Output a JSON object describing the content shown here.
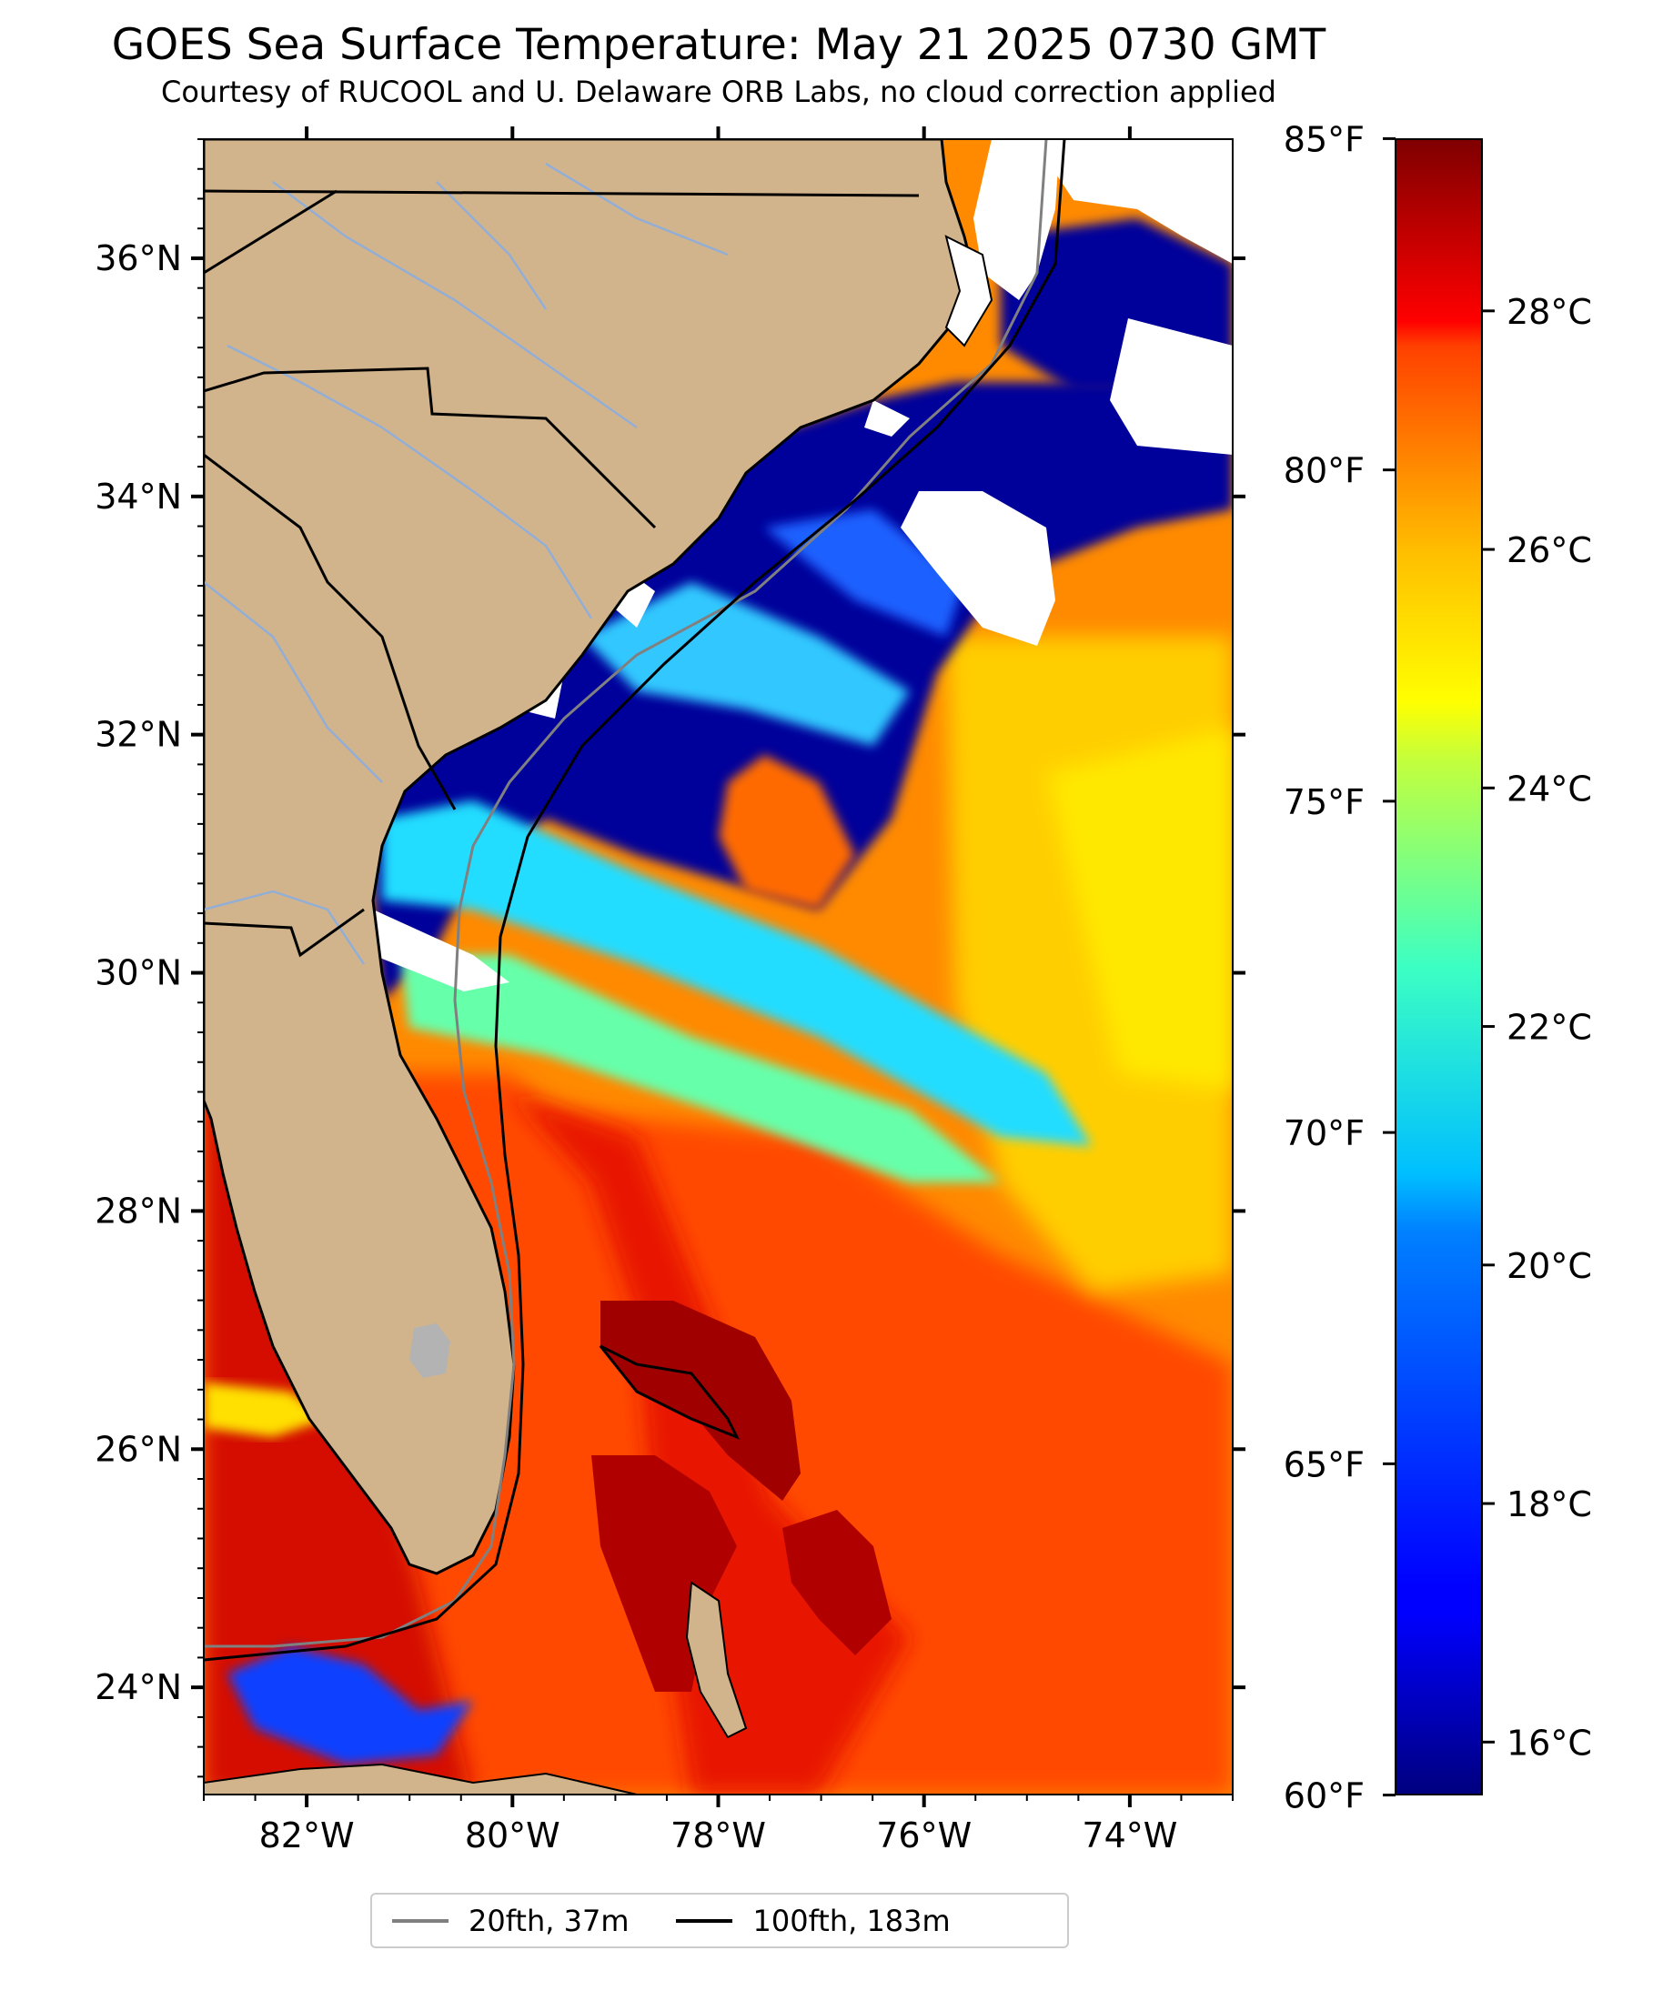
{
  "header": {
    "title": "GOES Sea Surface Temperature: May 21 2025 0730 GMT",
    "subtitle": "Courtesy of RUCOOL and U. Delaware ORB Labs, no cloud correction applied"
  },
  "map": {
    "lon_range": [
      -83,
      -73
    ],
    "lat_range": [
      23.1,
      37
    ],
    "lat_labels": [
      {
        "lat": 36,
        "label": "36°N"
      },
      {
        "lat": 34,
        "label": "34°N"
      },
      {
        "lat": 32,
        "label": "32°N"
      },
      {
        "lat": 30,
        "label": "30°N"
      },
      {
        "lat": 28,
        "label": "28°N"
      },
      {
        "lat": 26,
        "label": "26°N"
      },
      {
        "lat": 24,
        "label": "24°N"
      }
    ],
    "lon_labels": [
      {
        "lon": -82,
        "label": "82°W"
      },
      {
        "lon": -80,
        "label": "80°W"
      },
      {
        "lon": -78,
        "label": "78°W"
      },
      {
        "lon": -76,
        "label": "76°W"
      },
      {
        "lon": -74,
        "label": "74°W"
      }
    ],
    "colors": {
      "land": "#d2b48c",
      "cloud_mask": "#ffffff",
      "state_borders": "#000000",
      "rivers": "#92aed6",
      "isobath_20fth": "#808080",
      "isobath_100fth": "#000000"
    }
  },
  "colorbar": {
    "colormap": "jet",
    "celsius_range": [
      15.56,
      29.44
    ],
    "fahrenheit_labels": [
      {
        "value": 85,
        "label": "85°F"
      },
      {
        "value": 80,
        "label": "80°F"
      },
      {
        "value": 75,
        "label": "75°F"
      },
      {
        "value": 70,
        "label": "70°F"
      },
      {
        "value": 65,
        "label": "65°F"
      },
      {
        "value": 60,
        "label": "60°F"
      }
    ],
    "celsius_labels": [
      {
        "value": 28,
        "label": "28°C"
      },
      {
        "value": 26,
        "label": "26°C"
      },
      {
        "value": 24,
        "label": "24°C"
      },
      {
        "value": 22,
        "label": "22°C"
      },
      {
        "value": 20,
        "label": "20°C"
      },
      {
        "value": 18,
        "label": "18°C"
      },
      {
        "value": 16,
        "label": "16°C"
      }
    ]
  },
  "legend": {
    "items": [
      {
        "label": "20fth, 37m",
        "color": "#808080"
      },
      {
        "label": "100fth, 183m",
        "color": "#000000"
      }
    ]
  }
}
